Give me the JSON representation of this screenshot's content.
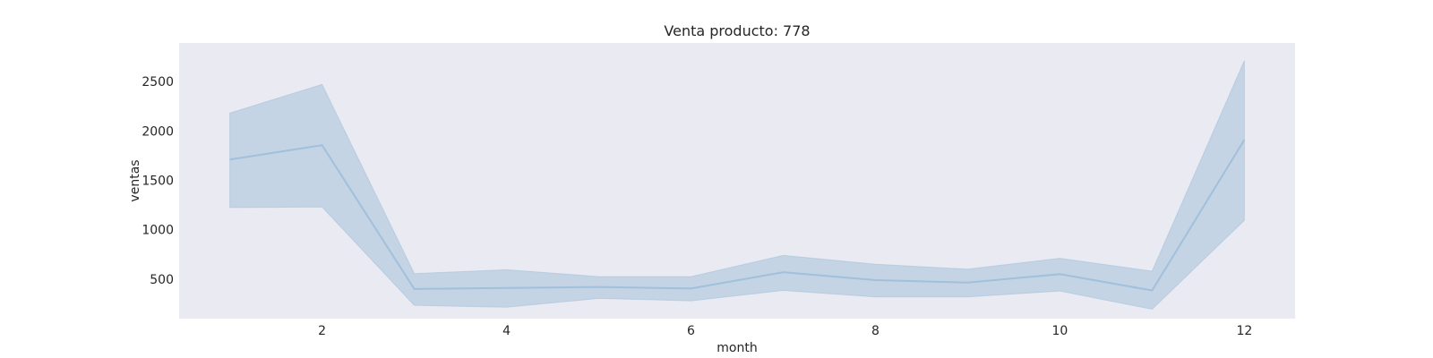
{
  "chart_data": {
    "type": "line",
    "title": "Venta producto: 778",
    "xlabel": "month",
    "ylabel": "ventas",
    "x": [
      1,
      2,
      3,
      4,
      5,
      6,
      7,
      8,
      9,
      10,
      11,
      12
    ],
    "series": [
      {
        "mean": [
          1710,
          1855,
          400,
          410,
          420,
          405,
          570,
          490,
          465,
          550,
          385,
          1910
        ],
        "ci_upper": [
          2180,
          2470,
          555,
          595,
          525,
          525,
          740,
          650,
          600,
          710,
          580,
          2710
        ],
        "ci_lower": [
          1225,
          1230,
          235,
          215,
          305,
          280,
          385,
          320,
          320,
          380,
          195,
          1095
        ]
      }
    ],
    "xlim": [
      0.45,
      12.55
    ],
    "ylim": [
      100,
      2890
    ],
    "xticks": [
      2,
      4,
      6,
      8,
      10,
      12
    ],
    "yticks": [
      500,
      1000,
      1500,
      2000,
      2500
    ],
    "grid": false,
    "colors": {
      "background": "#eaeaf2",
      "line": "#a0c0db",
      "band": "#c5d4e4",
      "text": "#262626"
    }
  }
}
